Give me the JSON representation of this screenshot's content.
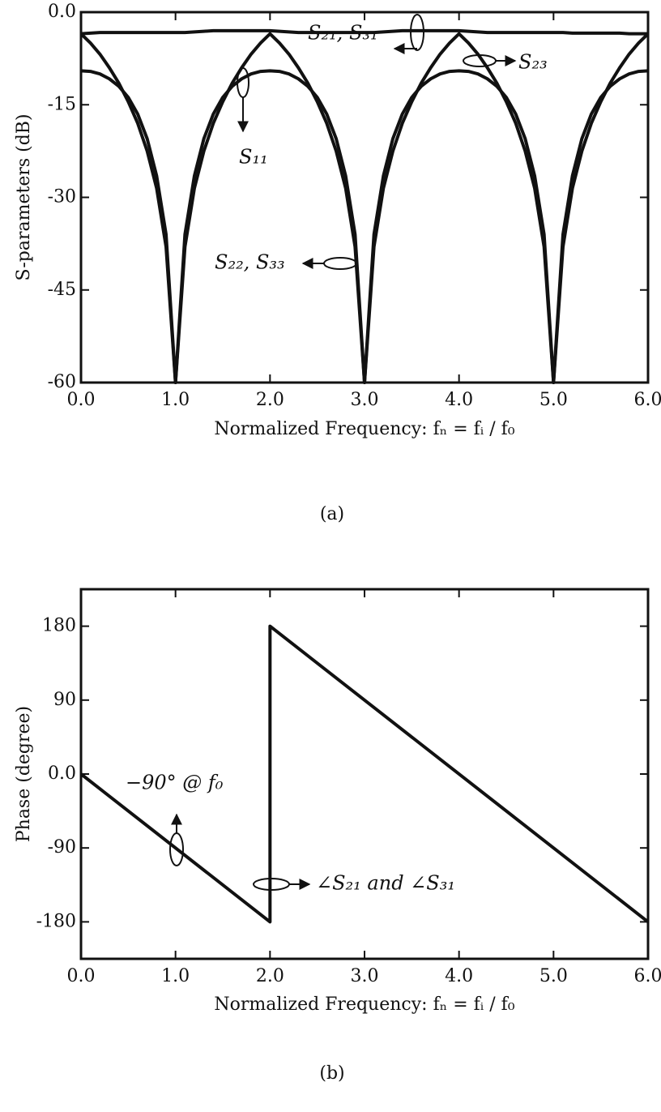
{
  "chart_data": [
    {
      "type": "line",
      "caption": "(a)",
      "ylabel": "S-parameters (dB)",
      "xlabel": "Normalized Frequency: fₙ = fᵢ / f₀",
      "xlim": [
        0,
        6
      ],
      "xticks": [
        {
          "value": 0,
          "label": "0.0"
        },
        {
          "value": 1,
          "label": "1.0"
        },
        {
          "value": 2,
          "label": "2.0"
        },
        {
          "value": 3,
          "label": "3.0"
        },
        {
          "value": 4,
          "label": "4.0"
        },
        {
          "value": 5,
          "label": "5.0"
        },
        {
          "value": 6,
          "label": "6.0"
        }
      ],
      "ylim": [
        -60,
        0
      ],
      "yticks": [
        {
          "value": 0,
          "label": "0.0"
        },
        -15,
        -30,
        -45,
        -60
      ],
      "x": [
        0,
        0.1,
        0.2,
        0.3,
        0.4,
        0.5,
        0.6,
        0.7,
        0.8,
        0.9,
        1,
        1.1,
        1.2,
        1.3,
        1.4,
        1.5,
        1.6,
        1.7,
        1.8,
        1.9,
        2,
        2.1,
        2.2,
        2.3,
        2.4,
        2.5,
        2.6,
        2.7,
        2.8,
        2.9,
        3,
        3.1,
        3.2,
        3.3,
        3.4,
        3.5,
        3.6,
        3.7,
        3.8,
        3.9,
        4,
        4.1,
        4.2,
        4.3,
        4.4,
        4.5,
        4.6,
        4.7,
        4.8,
        4.9,
        5,
        5.1,
        5.2,
        5.3,
        5.4,
        5.5,
        5.6,
        5.7,
        5.8,
        5.9,
        6
      ],
      "series": [
        {
          "color": "#111111",
          "values": [
            -3.5,
            -3.4,
            -3.3,
            -3.3,
            -3.3,
            -3.3,
            -3.3,
            -3.3,
            -3.3,
            -3.3,
            -3.3,
            -3.3,
            -3.2,
            -3.1,
            -3.0,
            -3.0,
            -3.0,
            -3.0,
            -3.0,
            -3.0,
            -3.0,
            -3.1,
            -3.2,
            -3.3,
            -3.3,
            -3.3,
            -3.3,
            -3.3,
            -3.3,
            -3.3,
            -3.3,
            -3.3,
            -3.2,
            -3.1,
            -3.0,
            -3.0,
            -3.0,
            -3.0,
            -3.0,
            -3.0,
            -3.0,
            -3.1,
            -3.2,
            -3.3,
            -3.3,
            -3.3,
            -3.3,
            -3.3,
            -3.3,
            -3.3,
            -3.3,
            -3.3,
            -3.4,
            -3.4,
            -3.4,
            -3.4,
            -3.4,
            -3.4,
            -3.5,
            -3.5,
            -3.5
          ]
        },
        {
          "color": "#111111",
          "values": [
            -3.5,
            -5,
            -6.8,
            -9,
            -11.5,
            -14.5,
            -18,
            -22.5,
            -28.5,
            -38,
            -60,
            -38,
            -28.5,
            -22.5,
            -18,
            -14.5,
            -11.5,
            -9,
            -6.8,
            -5,
            -3.5,
            -5,
            -6.8,
            -9,
            -11.5,
            -14.5,
            -18,
            -22.5,
            -28.5,
            -38,
            -60,
            -38,
            -28.5,
            -22.5,
            -18,
            -14.5,
            -11.5,
            -9,
            -6.8,
            -5,
            -3.5,
            -5,
            -6.8,
            -9,
            -11.5,
            -14.5,
            -18,
            -22.5,
            -28.5,
            -38,
            -60,
            -38,
            -28.5,
            -22.5,
            -18,
            -14.5,
            -11.5,
            -9,
            -6.8,
            -5,
            -3.5
          ]
        },
        {
          "color": "#111111",
          "values": [
            -9.5,
            -9.6,
            -10,
            -10.8,
            -12,
            -13.8,
            -16.5,
            -20.5,
            -26.5,
            -36,
            -60,
            -36,
            -26.5,
            -20.5,
            -16.5,
            -13.8,
            -12,
            -10.8,
            -10,
            -9.6,
            -9.5,
            -9.6,
            -10,
            -10.8,
            -12,
            -13.8,
            -16.5,
            -20.5,
            -26.5,
            -36,
            -60,
            -36,
            -26.5,
            -20.5,
            -16.5,
            -13.8,
            -12,
            -10.8,
            -10,
            -9.6,
            -9.5,
            -9.6,
            -10,
            -10.8,
            -12,
            -13.8,
            -16.5,
            -20.5,
            -26.5,
            -36,
            -60,
            -36,
            -26.5,
            -20.5,
            -16.5,
            -13.8,
            -12,
            -10.8,
            -10,
            -9.6,
            -9.5
          ]
        }
      ],
      "annotations": [
        "S₂₁, S₃₁",
        "S₂₃",
        "S₁₁",
        "S₂₂, S₃₃"
      ]
    },
    {
      "type": "line",
      "caption": "(b)",
      "ylabel": "Phase (degree)",
      "xlabel": "Normalized Frequency: fₙ = fᵢ / f₀",
      "xlim": [
        0,
        6
      ],
      "xticks": [
        {
          "value": 0,
          "label": "0.0"
        },
        {
          "value": 1,
          "label": "1.0"
        },
        {
          "value": 2,
          "label": "2.0"
        },
        {
          "value": 3,
          "label": "3.0"
        },
        {
          "value": 4,
          "label": "4.0"
        },
        {
          "value": 5,
          "label": "5.0"
        },
        {
          "value": 6,
          "label": "6.0"
        }
      ],
      "ylim": [
        -225,
        225
      ],
      "yticks": [
        180,
        90,
        {
          "value": 0,
          "label": "0.0"
        },
        -90,
        -180
      ],
      "x": [
        0,
        2,
        2,
        6
      ],
      "series": [
        {
          "color": "#111111",
          "values": [
            0,
            -180,
            180,
            -180
          ]
        }
      ],
      "annotations": [
        "−90° @ f₀",
        "∠S₂₁ and ∠S₃₁"
      ]
    }
  ]
}
